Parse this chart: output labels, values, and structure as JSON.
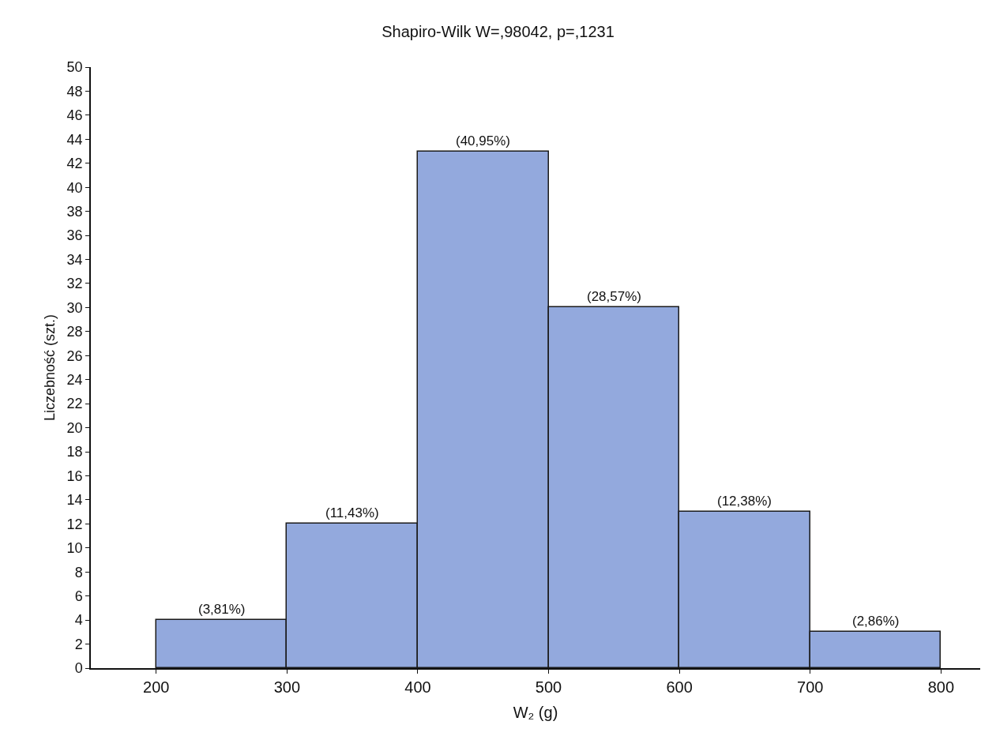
{
  "chart_data": {
    "type": "histogram",
    "title": "Shapiro-Wilk W=,98042, p=,1231",
    "xlabel": "W₂ (g)",
    "ylabel": "Liczebność (szt.)",
    "bins": [
      200,
      300,
      400,
      500,
      600,
      700,
      800
    ],
    "values": [
      4,
      12,
      43,
      30,
      13,
      3
    ],
    "annotations": [
      {
        "text": "(3,81%)",
        "x": 250,
        "y": 4
      },
      {
        "text": "(11,43%)",
        "x": 350,
        "y": 12
      },
      {
        "text": "(40,95%)",
        "x": 450,
        "y": 43
      },
      {
        "text": "(28,57%)",
        "x": 550,
        "y": 30
      },
      {
        "text": "(12,38%)",
        "x": 650,
        "y": 13
      },
      {
        "text": "(2,86%)",
        "x": 750,
        "y": 3
      }
    ],
    "color": "#93a9dd",
    "xlim": [
      150,
      830
    ],
    "xticks": [
      200,
      300,
      400,
      500,
      600,
      700,
      800
    ],
    "ylim": [
      0,
      50
    ],
    "yticks": [
      0,
      2,
      4,
      6,
      8,
      10,
      12,
      14,
      16,
      18,
      20,
      22,
      24,
      26,
      28,
      30,
      32,
      34,
      36,
      38,
      40,
      42,
      44,
      46,
      48,
      50
    ],
    "grid": false,
    "legend": false
  }
}
